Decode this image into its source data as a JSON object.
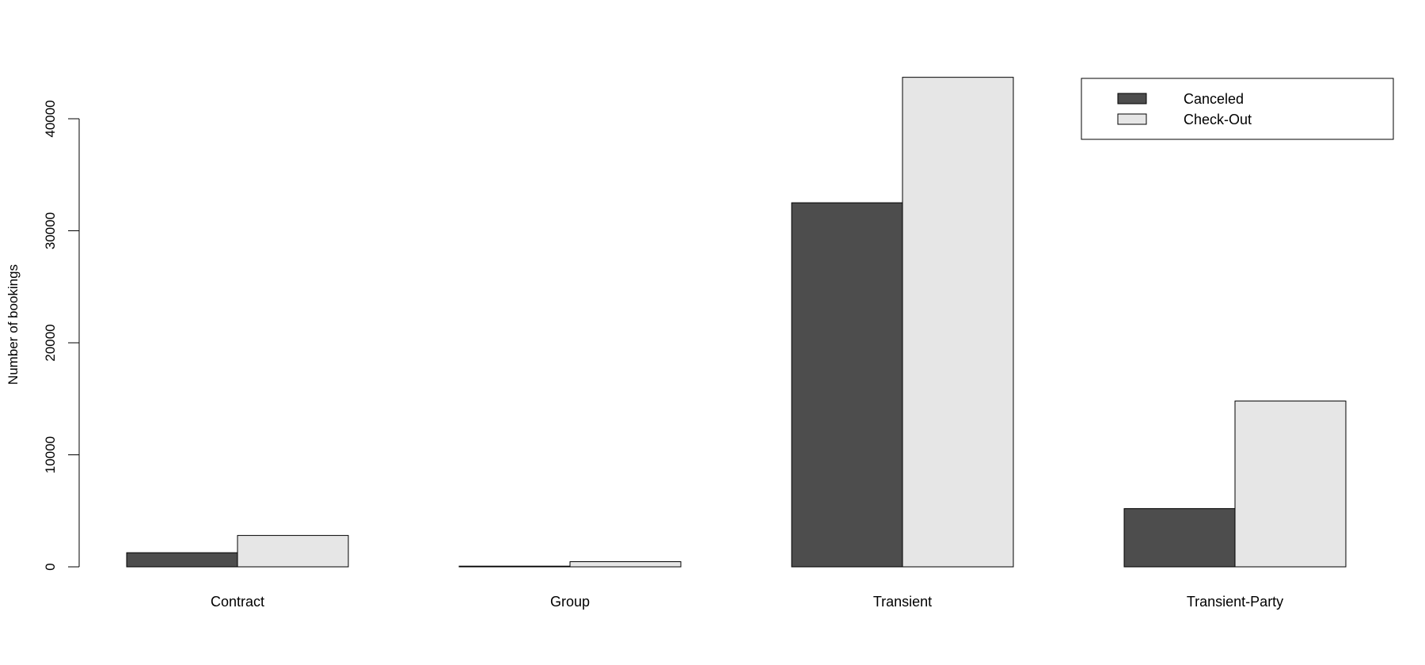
{
  "chart_data": {
    "type": "bar",
    "title": "",
    "xlabel": "",
    "ylabel": "Number of bookings",
    "categories": [
      "Contract",
      "Group",
      "Transient",
      "Transient-Party"
    ],
    "series": [
      {
        "name": "Canceled",
        "color": "#4d4d4d",
        "values": [
          1260,
          60,
          32500,
          5200
        ]
      },
      {
        "name": "Check-Out",
        "color": "#e6e6e6",
        "values": [
          2800,
          460,
          43700,
          14800
        ]
      }
    ],
    "yticks": [
      0,
      10000,
      20000,
      30000,
      40000
    ],
    "ylim": [
      0,
      44000
    ],
    "grid": false,
    "legend_position": "top-right"
  }
}
